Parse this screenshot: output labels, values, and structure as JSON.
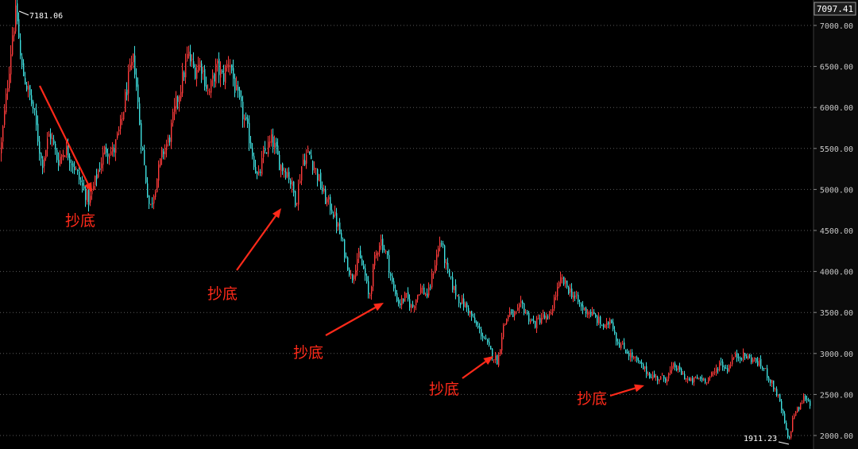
{
  "chart_data": {
    "type": "candlestick",
    "title": "",
    "xlabel": "",
    "ylabel": "",
    "ylim": [
      1880,
      7300
    ],
    "y_ticks": [
      "7000.00",
      "6500.00",
      "6000.00",
      "5500.00",
      "5000.00",
      "4500.00",
      "4000.00",
      "3500.00",
      "3000.00",
      "2500.00",
      "2000.00"
    ],
    "current_price": "7097.41",
    "max_label": "7181.06",
    "min_label": "1911.23",
    "grid": true,
    "colors": {
      "up": "#ff3b3b",
      "down": "#3fe0e0",
      "grid": "#5a5a5a",
      "axis_text": "#c8c8c8",
      "annotation": "#ff2a1a"
    },
    "price_path": [
      [
        0,
        5450
      ],
      [
        8,
        6200
      ],
      [
        15,
        6900
      ],
      [
        20,
        7181
      ],
      [
        26,
        6500
      ],
      [
        32,
        6300
      ],
      [
        42,
        5950
      ],
      [
        52,
        5300
      ],
      [
        62,
        5700
      ],
      [
        72,
        5350
      ],
      [
        82,
        5500
      ],
      [
        92,
        5300
      ],
      [
        102,
        5050
      ],
      [
        112,
        4850
      ],
      [
        122,
        5200
      ],
      [
        132,
        5500
      ],
      [
        142,
        5450
      ],
      [
        152,
        5800
      ],
      [
        160,
        6300
      ],
      [
        168,
        6600
      ],
      [
        176,
        5700
      ],
      [
        182,
        5200
      ],
      [
        188,
        4750
      ],
      [
        196,
        5100
      ],
      [
        204,
        5450
      ],
      [
        212,
        5600
      ],
      [
        220,
        6000
      ],
      [
        228,
        6300
      ],
      [
        236,
        6650
      ],
      [
        244,
        6450
      ],
      [
        252,
        6550
      ],
      [
        262,
        6150
      ],
      [
        272,
        6500
      ],
      [
        280,
        6350
      ],
      [
        288,
        6600
      ],
      [
        296,
        6200
      ],
      [
        304,
        5950
      ],
      [
        314,
        5600
      ],
      [
        324,
        5100
      ],
      [
        332,
        5450
      ],
      [
        342,
        5600
      ],
      [
        352,
        5300
      ],
      [
        362,
        5200
      ],
      [
        372,
        4850
      ],
      [
        380,
        5350
      ],
      [
        388,
        5450
      ],
      [
        398,
        5200
      ],
      [
        408,
        4900
      ],
      [
        418,
        4750
      ],
      [
        426,
        4500
      ],
      [
        434,
        4200
      ],
      [
        442,
        3900
      ],
      [
        450,
        4200
      ],
      [
        458,
        4000
      ],
      [
        464,
        3650
      ],
      [
        470,
        4100
      ],
      [
        478,
        4400
      ],
      [
        486,
        4200
      ],
      [
        494,
        3800
      ],
      [
        502,
        3600
      ],
      [
        510,
        3700
      ],
      [
        518,
        3550
      ],
      [
        528,
        3800
      ],
      [
        538,
        3700
      ],
      [
        548,
        4150
      ],
      [
        554,
        4400
      ],
      [
        562,
        4000
      ],
      [
        570,
        3800
      ],
      [
        578,
        3650
      ],
      [
        588,
        3550
      ],
      [
        598,
        3350
      ],
      [
        608,
        3200
      ],
      [
        618,
        3000
      ],
      [
        626,
        2900
      ],
      [
        632,
        3300
      ],
      [
        640,
        3500
      ],
      [
        648,
        3450
      ],
      [
        656,
        3600
      ],
      [
        664,
        3450
      ],
      [
        672,
        3350
      ],
      [
        682,
        3450
      ],
      [
        690,
        3400
      ],
      [
        698,
        3700
      ],
      [
        706,
        3900
      ],
      [
        714,
        3800
      ],
      [
        722,
        3700
      ],
      [
        732,
        3550
      ],
      [
        742,
        3500
      ],
      [
        752,
        3400
      ],
      [
        762,
        3300
      ],
      [
        768,
        3450
      ],
      [
        776,
        3150
      ],
      [
        786,
        3050
      ],
      [
        796,
        2950
      ],
      [
        806,
        2850
      ],
      [
        816,
        2750
      ],
      [
        826,
        2700
      ],
      [
        838,
        2700
      ],
      [
        848,
        2850
      ],
      [
        858,
        2750
      ],
      [
        868,
        2650
      ],
      [
        878,
        2700
      ],
      [
        888,
        2680
      ],
      [
        898,
        2750
      ],
      [
        906,
        2900
      ],
      [
        914,
        2800
      ],
      [
        922,
        2950
      ],
      [
        932,
        2980
      ],
      [
        942,
        2950
      ],
      [
        952,
        2900
      ],
      [
        962,
        2800
      ],
      [
        970,
        2650
      ],
      [
        978,
        2500
      ],
      [
        986,
        2200
      ],
      [
        992,
        1911
      ],
      [
        998,
        2250
      ],
      [
        1006,
        2350
      ],
      [
        1012,
        2480
      ],
      [
        1020,
        2380
      ]
    ],
    "annotations": [
      {
        "label": "抄底",
        "text_x": 82,
        "text_y": 284,
        "from": [
          50,
          108
        ],
        "to": [
          116,
          242
        ]
      },
      {
        "label": "抄底",
        "text_x": 261,
        "text_y": 376,
        "from": [
          298,
          340
        ],
        "to": [
          354,
          262
        ]
      },
      {
        "label": "抄底",
        "text_x": 369,
        "text_y": 450,
        "from": [
          410,
          422
        ],
        "to": [
          483,
          381
        ]
      },
      {
        "label": "抄底",
        "text_x": 540,
        "text_y": 496,
        "from": [
          582,
          476
        ],
        "to": [
          621,
          448
        ]
      },
      {
        "label": "抄底",
        "text_x": 726,
        "text_y": 508,
        "from": [
          768,
          498
        ],
        "to": [
          811,
          485
        ]
      }
    ]
  }
}
